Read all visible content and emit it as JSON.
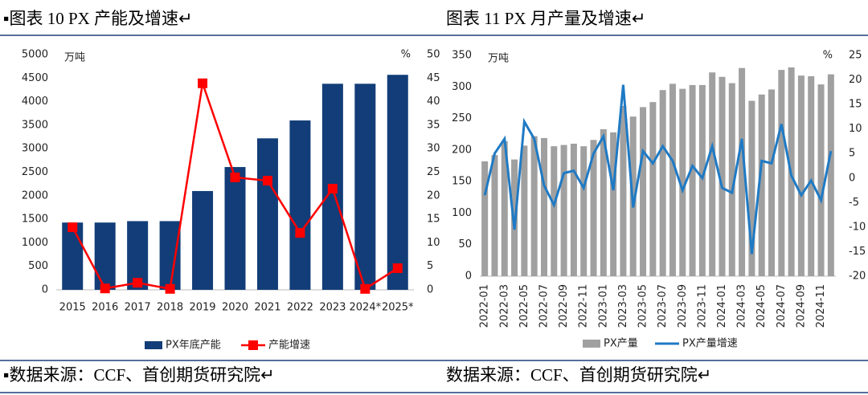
{
  "chart_data": [
    {
      "type": "bar",
      "title": "▪图表  10 PX 产能及增速↵",
      "source": "▪数据来源：CCF、首创期货研究院↵",
      "y_unit_label": "万吨",
      "y2_unit_label": "%",
      "categories": [
        "2015",
        "2016",
        "2017",
        "2018",
        "2019",
        "2020",
        "2021",
        "2022",
        "2023",
        "2024*",
        "2025*"
      ],
      "series": [
        {
          "name": "PX年底产能",
          "type": "bar",
          "color": "#123d78",
          "values": [
            1430,
            1430,
            1460,
            1460,
            2100,
            2610,
            3220,
            3600,
            4380,
            4380,
            4570
          ]
        },
        {
          "name": "产能增速",
          "type": "line",
          "axis": "y2",
          "color": "#ff0000",
          "values": [
            13.3,
            0.3,
            1.5,
            0.2,
            43.9,
            23.9,
            23.2,
            12.1,
            21.5,
            0.2,
            4.6
          ]
        }
      ],
      "ylim": [
        0,
        5000
      ],
      "yticks": [
        0,
        500,
        1000,
        1500,
        2000,
        2500,
        3000,
        3500,
        4000,
        4500,
        5000
      ],
      "y2lim": [
        0,
        50
      ],
      "y2ticks": [
        0,
        5,
        10,
        15,
        20,
        25,
        30,
        35,
        40,
        45,
        50
      ]
    },
    {
      "type": "bar",
      "title": "图表  11 PX 月产量及增速↵",
      "source": "数据来源：CCF、首创期货研究院↵",
      "y_unit_label": "万吨",
      "y2_unit_label": "%",
      "categories": [
        "2022-01",
        null,
        "2022-03",
        null,
        "2022-05",
        null,
        "2022-07",
        null,
        "2022-09",
        null,
        "2022-11",
        null,
        "2023-01",
        null,
        "2023-03",
        null,
        "2023-05",
        null,
        "2023-07",
        null,
        "2023-09",
        null,
        "2023-11",
        null,
        "2024-01",
        null,
        "2024-03",
        null,
        "2024-05",
        null,
        "2024-07",
        null,
        "2024-09",
        null,
        "2024-11",
        null
      ],
      "series": [
        {
          "name": "PX产量",
          "type": "bar",
          "color": "#a0a0a0",
          "values": [
            182,
            192,
            214,
            185,
            207,
            222,
            219,
            206,
            208,
            210,
            206,
            216,
            233,
            228,
            270,
            253,
            268,
            276,
            295,
            305,
            297,
            303,
            303,
            323,
            316,
            306,
            330,
            278,
            288,
            296,
            327,
            331,
            318,
            317,
            304,
            320
          ]
        },
        {
          "name": "PX产量增速",
          "type": "line",
          "axis": "y2",
          "color": "#1f7ac4",
          "values": [
            -3.5,
            5,
            8,
            -10.5,
            11.5,
            8,
            -1.5,
            -5.5,
            1,
            1.5,
            -2,
            5,
            8.5,
            -2.5,
            19,
            -6,
            5.5,
            3,
            6.5,
            3.5,
            -2.5,
            2.5,
            0,
            6.5,
            -2,
            -3,
            8,
            -15.5,
            3.5,
            3,
            11,
            0.5,
            -3.5,
            -0.5,
            -4.5,
            5.5
          ]
        }
      ],
      "ylim": [
        0,
        350
      ],
      "yticks": [
        0,
        50,
        100,
        150,
        200,
        250,
        300,
        350
      ],
      "y2lim": [
        -20,
        25
      ],
      "y2ticks": [
        -20,
        -15,
        -10,
        -5,
        0,
        5,
        10,
        15,
        20,
        25
      ]
    }
  ]
}
